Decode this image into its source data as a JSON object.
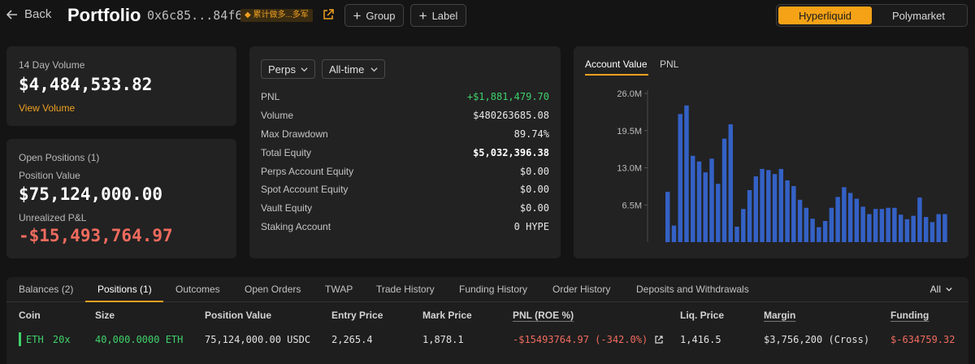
{
  "header": {
    "back_label": "Back",
    "title": "Portfolio",
    "address": "0x6c85...84f6",
    "tag": "◆ 累计做多...多军",
    "group_label": "Group",
    "label_label": "Label",
    "platforms": [
      "Hyperliquid",
      "Polymarket"
    ],
    "active_platform": "Hyperliquid"
  },
  "volume_card": {
    "label": "14 Day Volume",
    "value": "$4,484,533.82",
    "link": "View Volume"
  },
  "positions_card": {
    "title": "Open Positions (1)",
    "position_value_label": "Position Value",
    "position_value": "$75,124,000.00",
    "unrealized_label": "Unrealized P&L",
    "unrealized_value": "-$15,493,764.97"
  },
  "stats_card": {
    "market_dropdown": "Perps",
    "range_dropdown": "All-time",
    "rows": [
      {
        "key": "PNL",
        "value": "+$1,881,479.70"
      },
      {
        "key": "Volume",
        "value": "$480263685.08"
      },
      {
        "key": "Max Drawdown",
        "value": "89.74%"
      },
      {
        "key": "Total Equity",
        "value": "$5,032,396.38"
      },
      {
        "key": "Perps Account Equity",
        "value": "$0.00"
      },
      {
        "key": "Spot Account Equity",
        "value": "$0.00"
      },
      {
        "key": "Vault Equity",
        "value": "$0.00"
      },
      {
        "key": "Staking Account",
        "value": "0 HYPE"
      }
    ],
    "colors": {
      "positive": "#3fd16b"
    }
  },
  "chart_tabs": [
    "Account Value",
    "PNL"
  ],
  "chart_data": {
    "type": "bar",
    "title": "",
    "xlabel": "",
    "ylabel": "",
    "ylim": [
      0,
      26000000
    ],
    "yticks": [
      6500000,
      13000000,
      19500000,
      26000000
    ],
    "ytick_labels": [
      "6.5M",
      "13.0M",
      "19.5M",
      "26.0M"
    ],
    "color": "#3461c5",
    "values": [
      8.8,
      2.9,
      22.4,
      23.9,
      15.1,
      14.1,
      12.2,
      14.6,
      10.2,
      18.1,
      20.6,
      2.7,
      5.8,
      9.1,
      11.5,
      12.8,
      12.6,
      11.9,
      12.8,
      10.8,
      9.8,
      7.4,
      6.0,
      4.1,
      2.6,
      3.7,
      6.0,
      7.9,
      9.6,
      8.6,
      7.6,
      6.2,
      4.9,
      5.8,
      5.8,
      6.0,
      6.0,
      4.8,
      4.0,
      4.6,
      7.8,
      4.4,
      3.5,
      4.9,
      4.9
    ]
  },
  "bottom": {
    "tabs": [
      "Balances (2)",
      "Positions (1)",
      "Outcomes",
      "Open Orders",
      "TWAP",
      "Trade History",
      "Funding History",
      "Order History",
      "Deposits and Withdrawals"
    ],
    "active_tab": "Positions (1)",
    "filter": "All",
    "columns": [
      "Coin",
      "Size",
      "Position Value",
      "Entry Price",
      "Mark Price",
      "PNL (ROE %)",
      "Liq. Price",
      "Margin",
      "Funding"
    ],
    "row": {
      "coin": "ETH",
      "leverage": "20x",
      "size": "40,000.0000 ETH",
      "position_value": "75,124,000.00 USDC",
      "entry_price": "2,265.4",
      "mark_price": "1,878.1",
      "pnl": "-$15493764.97 (-342.0%)",
      "liq_price": "1,416.5",
      "margin": "$3,756,200 (Cross)",
      "funding": "$-634759.32"
    }
  }
}
